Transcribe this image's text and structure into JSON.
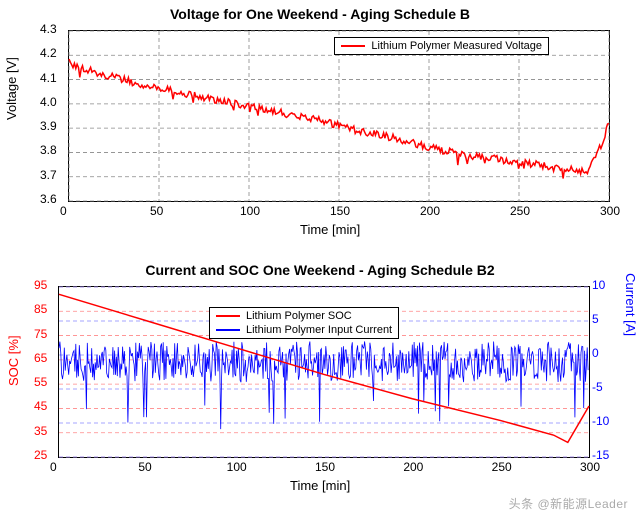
{
  "watermark": "头条 @新能源Leader",
  "chart1": {
    "title": "Voltage for One Weekend - Aging Schedule B",
    "xlabel": "Time [min]",
    "ylabel": "Voltage [V]",
    "xlim": [
      0,
      300
    ],
    "xticks": [
      0,
      50,
      100,
      150,
      200,
      250,
      300
    ],
    "ylim": [
      3.6,
      4.3
    ],
    "yticks": [
      3.6,
      3.7,
      3.8,
      3.9,
      4.0,
      4.1,
      4.2,
      4.3
    ],
    "legend": {
      "label": "Lithium Polymer Measured Voltage",
      "color": "#ff0000",
      "width": 2
    },
    "grid_color": "#888",
    "series": {
      "color": "#ff0000",
      "width": 1.5,
      "noise_amp": 0.015,
      "x": [
        0,
        10,
        20,
        30,
        40,
        60,
        80,
        100,
        120,
        140,
        160,
        180,
        200,
        220,
        240,
        260,
        280,
        285,
        290,
        295,
        300
      ],
      "y": [
        4.17,
        4.14,
        4.12,
        4.1,
        4.08,
        4.05,
        4.02,
        3.99,
        3.96,
        3.93,
        3.89,
        3.86,
        3.82,
        3.79,
        3.77,
        3.75,
        3.73,
        3.72,
        3.75,
        3.82,
        3.92
      ]
    }
  },
  "chart2": {
    "title": "Current and SOC One Weekend - Aging Schedule B2",
    "xlabel": "Time [min]",
    "yL_label": "SOC [%]",
    "yR_label": "Current [A]",
    "xlim": [
      0,
      300
    ],
    "xticks": [
      0,
      50,
      100,
      150,
      200,
      250,
      300
    ],
    "yL_lim": [
      25,
      95
    ],
    "yL_ticks": [
      25,
      35,
      45,
      55,
      65,
      75,
      85,
      95
    ],
    "yR_lim": [
      -15,
      10
    ],
    "yR_ticks": [
      -15,
      -10,
      -5,
      0,
      5,
      10
    ],
    "yL_color": "#ff0000",
    "yR_color": "#0000ff",
    "grid_colorL": "#ff8888",
    "grid_colorR": "#8888ff",
    "legend": [
      {
        "label": "Lithium Polymer SOC",
        "color": "#ff0000"
      },
      {
        "label": "Lithium Polymer Input Current",
        "color": "#0000ff"
      }
    ],
    "soc": {
      "color": "#ff0000",
      "width": 1.5,
      "x": [
        0,
        50,
        100,
        150,
        200,
        250,
        280,
        288,
        300
      ],
      "y": [
        92,
        81,
        70,
        59,
        49,
        40,
        34,
        31,
        46
      ]
    },
    "current": {
      "color": "#0000ff",
      "width": 0.8,
      "noise_amp": 3.0,
      "baseline": -1,
      "spike_amp": -11,
      "n_points": 600
    }
  }
}
